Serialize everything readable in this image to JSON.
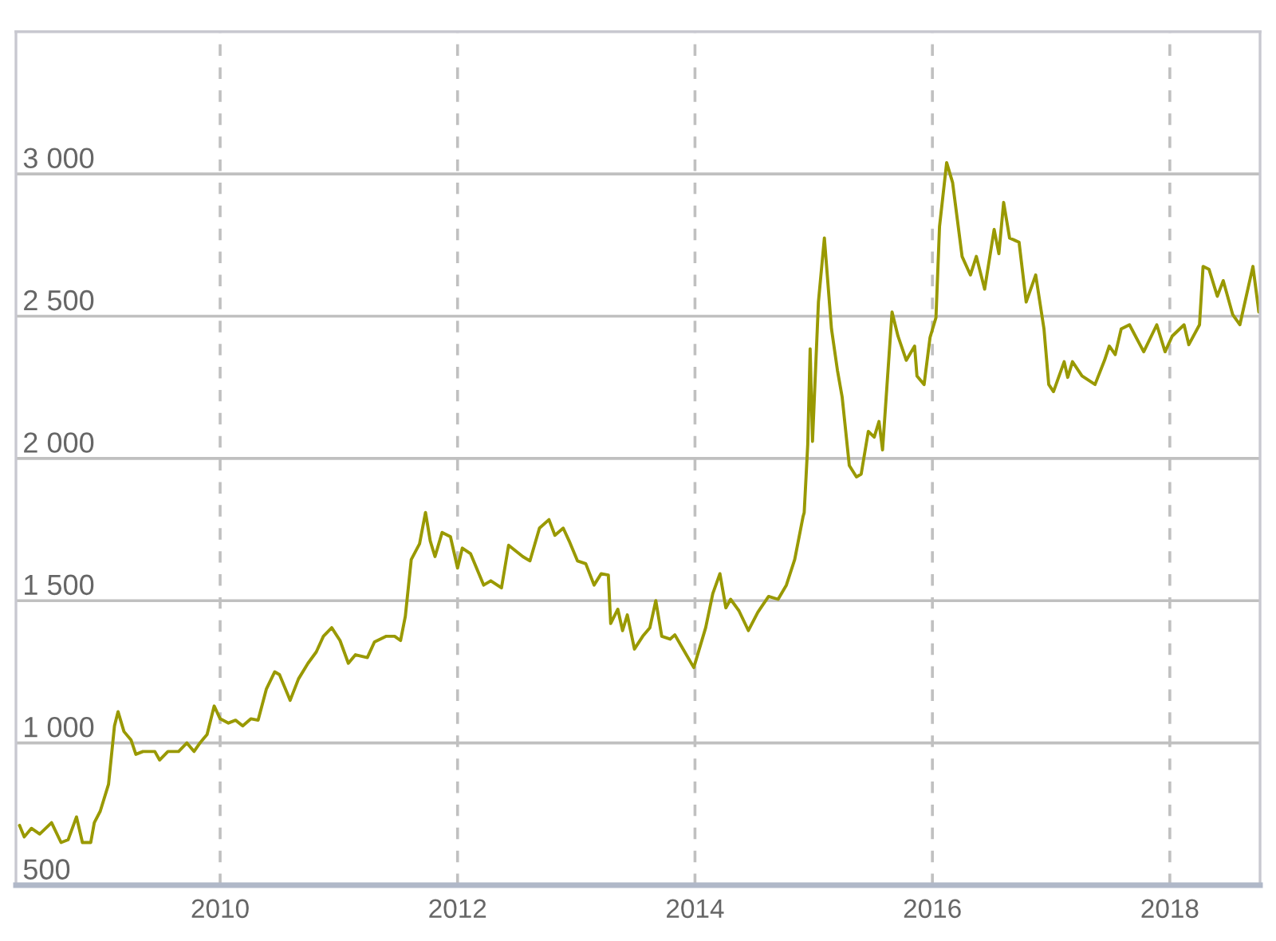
{
  "chart_data": {
    "type": "line",
    "x": [
      2008.31,
      2008.35,
      2008.41,
      2008.48,
      2008.58,
      2008.66,
      2008.72,
      2008.79,
      2008.84,
      2008.91,
      2008.94,
      2008.99,
      2009.06,
      2009.11,
      2009.14,
      2009.19,
      2009.25,
      2009.29,
      2009.35,
      2009.45,
      2009.49,
      2009.56,
      2009.65,
      2009.72,
      2009.78,
      2009.83,
      2009.89,
      2009.95,
      2010.0,
      2010.07,
      2010.13,
      2010.19,
      2010.26,
      2010.32,
      2010.39,
      2010.46,
      2010.5,
      2010.59,
      2010.66,
      2010.74,
      2010.81,
      2010.87,
      2010.94,
      2011.01,
      2011.08,
      2011.14,
      2011.24,
      2011.3,
      2011.4,
      2011.47,
      2011.52,
      2011.56,
      2011.61,
      2011.68,
      2011.73,
      2011.77,
      2011.81,
      2011.87,
      2011.94,
      2012.0,
      2012.04,
      2012.11,
      2012.22,
      2012.28,
      2012.37,
      2012.43,
      2012.55,
      2012.61,
      2012.69,
      2012.77,
      2012.82,
      2012.89,
      2012.94,
      2013.01,
      2013.08,
      2013.15,
      2013.21,
      2013.27,
      2013.29,
      2013.35,
      2013.39,
      2013.43,
      2013.49,
      2013.56,
      2013.62,
      2013.67,
      2013.72,
      2013.79,
      2013.83,
      2013.9,
      2013.99,
      2014.09,
      2014.15,
      2014.21,
      2014.26,
      2014.3,
      2014.37,
      2014.45,
      2014.53,
      2014.62,
      2014.7,
      2014.77,
      2014.84,
      2014.91,
      2014.92,
      2014.95,
      2014.97,
      2014.99,
      2015.04,
      2015.09,
      2015.15,
      2015.2,
      2015.24,
      2015.3,
      2015.36,
      2015.4,
      2015.46,
      2015.51,
      2015.55,
      2015.58,
      2015.66,
      2015.71,
      2015.78,
      2015.85,
      2015.87,
      2015.93,
      2015.98,
      2016.03,
      2016.06,
      2016.12,
      2016.17,
      2016.25,
      2016.32,
      2016.37,
      2016.44,
      2016.52,
      2016.56,
      2016.6,
      2016.65,
      2016.73,
      2016.79,
      2016.87,
      2016.94,
      2016.98,
      2017.02,
      2017.11,
      2017.14,
      2017.18,
      2017.26,
      2017.37,
      2017.45,
      2017.49,
      2017.54,
      2017.59,
      2017.66,
      2017.78,
      2017.89,
      2017.96,
      2018.02,
      2018.12,
      2018.16,
      2018.25,
      2018.28,
      2018.33,
      2018.4,
      2018.45,
      2018.53,
      2018.59,
      2018.7,
      2018.75
    ],
    "series": [
      {
        "color": "#999900",
        "values": [
          710,
          670,
          700,
          680,
          720,
          650,
          660,
          740,
          650,
          650,
          720,
          760,
          855,
          1060,
          1110,
          1040,
          1010,
          960,
          970,
          970,
          940,
          970,
          970,
          1000,
          970,
          1000,
          1030,
          1130,
          1085,
          1070,
          1080,
          1060,
          1085,
          1080,
          1190,
          1250,
          1240,
          1150,
          1225,
          1280,
          1320,
          1375,
          1405,
          1360,
          1280,
          1310,
          1300,
          1355,
          1375,
          1375,
          1360,
          1445,
          1645,
          1700,
          1810,
          1710,
          1655,
          1740,
          1725,
          1615,
          1685,
          1665,
          1555,
          1570,
          1545,
          1695,
          1655,
          1640,
          1755,
          1785,
          1730,
          1755,
          1710,
          1640,
          1630,
          1555,
          1595,
          1590,
          1420,
          1470,
          1395,
          1450,
          1330,
          1375,
          1405,
          1500,
          1375,
          1365,
          1380,
          1330,
          1265,
          1405,
          1525,
          1595,
          1475,
          1505,
          1465,
          1395,
          1460,
          1515,
          1505,
          1555,
          1645,
          1795,
          1810,
          2050,
          2385,
          2060,
          2550,
          2775,
          2455,
          2310,
          2215,
          1975,
          1935,
          1945,
          2095,
          2075,
          2130,
          2030,
          2515,
          2430,
          2345,
          2395,
          2290,
          2260,
          2425,
          2495,
          2815,
          3040,
          2970,
          2710,
          2645,
          2710,
          2595,
          2805,
          2720,
          2900,
          2775,
          2760,
          2550,
          2645,
          2455,
          2260,
          2235,
          2340,
          2285,
          2340,
          2290,
          2260,
          2345,
          2395,
          2365,
          2455,
          2470,
          2375,
          2470,
          2375,
          2430,
          2470,
          2400,
          2470,
          2675,
          2665,
          2570,
          2625,
          2505,
          2470,
          2675,
          2515
        ]
      }
    ],
    "xlim": [
      2008.28,
      2018.76
    ],
    "xticks": [
      2010,
      2012,
      2014,
      2016,
      2018
    ],
    "ylim": [
      500,
      3500
    ],
    "yticks": [
      {
        "value": 500,
        "label": "500"
      },
      {
        "value": 1000,
        "label": "1 000"
      },
      {
        "value": 1500,
        "label": "1 500"
      },
      {
        "value": 2000,
        "label": "2 000"
      },
      {
        "value": 2500,
        "label": "2 500"
      },
      {
        "value": 3000,
        "label": "3 000"
      }
    ],
    "grid": true,
    "marker": "none",
    "line_style": "solid"
  }
}
